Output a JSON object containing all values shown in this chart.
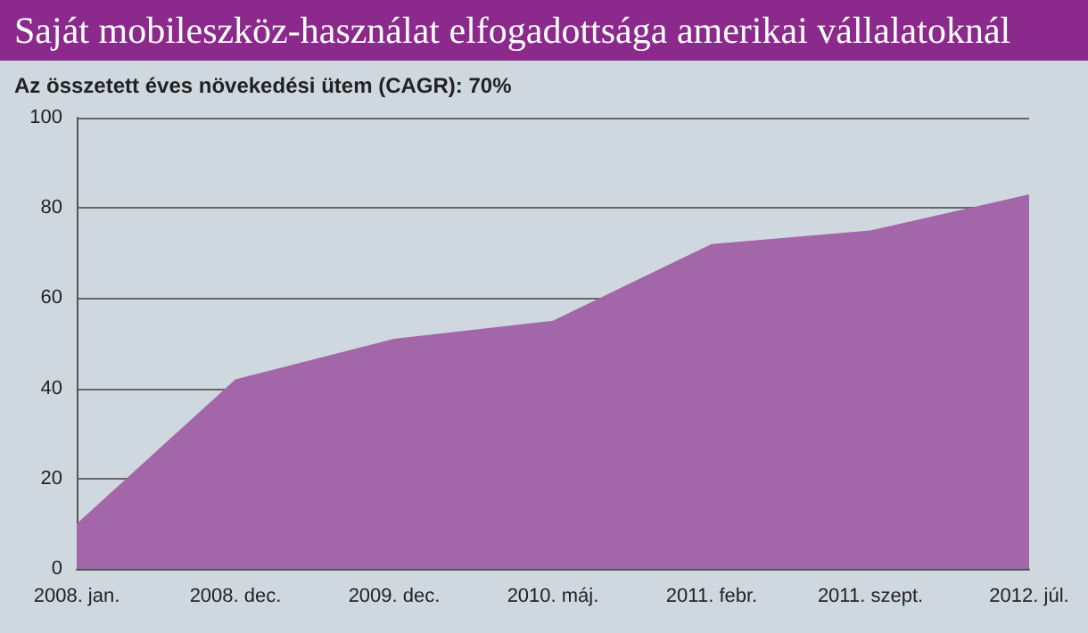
{
  "chart_data": {
    "type": "area",
    "title": "Saját mobileszköz-használat elfogadottsága amerikai vállalatoknál",
    "subtitle": "Az összetett éves növekedési ütem (CAGR): 70%",
    "categories": [
      "2008. jan.",
      "2008. dec.",
      "2009. dec.",
      "2010. máj.",
      "2011. febr.",
      "2011. szept.",
      "2012. júl."
    ],
    "series": [
      {
        "color": "#a366a8",
        "values": [
          10,
          42,
          51,
          55,
          72,
          75,
          83
        ]
      }
    ],
    "ylim": [
      0,
      100
    ],
    "yticks": [
      0,
      20,
      40,
      60,
      80,
      100
    ],
    "grid": "y"
  }
}
